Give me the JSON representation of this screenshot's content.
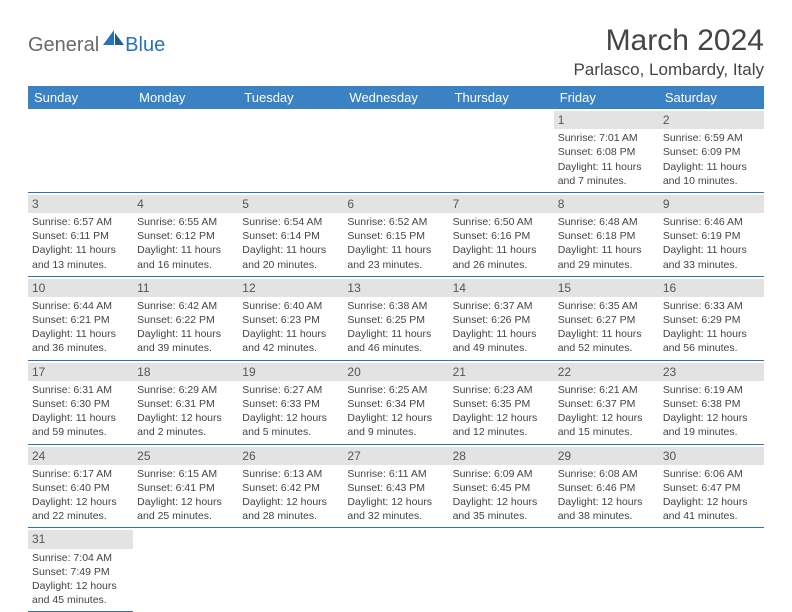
{
  "logo": {
    "general": "General",
    "blue": "Blue"
  },
  "title": "March 2024",
  "location": "Parlasco, Lombardy, Italy",
  "colors": {
    "header_bg": "#3b82c4",
    "header_fg": "#ffffff",
    "daynum_bg": "#e3e3e3",
    "rule": "#2a71b8",
    "logo_gray": "#6a6a6a",
    "logo_blue": "#2a71b8"
  },
  "weekdays": [
    "Sunday",
    "Monday",
    "Tuesday",
    "Wednesday",
    "Thursday",
    "Friday",
    "Saturday"
  ],
  "cells": [
    {
      "day": "",
      "sunrise": "",
      "sunset": "",
      "daylight": ""
    },
    {
      "day": "",
      "sunrise": "",
      "sunset": "",
      "daylight": ""
    },
    {
      "day": "",
      "sunrise": "",
      "sunset": "",
      "daylight": ""
    },
    {
      "day": "",
      "sunrise": "",
      "sunset": "",
      "daylight": ""
    },
    {
      "day": "",
      "sunrise": "",
      "sunset": "",
      "daylight": ""
    },
    {
      "day": "1",
      "sunrise": "Sunrise: 7:01 AM",
      "sunset": "Sunset: 6:08 PM",
      "daylight": "Daylight: 11 hours and 7 minutes."
    },
    {
      "day": "2",
      "sunrise": "Sunrise: 6:59 AM",
      "sunset": "Sunset: 6:09 PM",
      "daylight": "Daylight: 11 hours and 10 minutes."
    },
    {
      "day": "3",
      "sunrise": "Sunrise: 6:57 AM",
      "sunset": "Sunset: 6:11 PM",
      "daylight": "Daylight: 11 hours and 13 minutes."
    },
    {
      "day": "4",
      "sunrise": "Sunrise: 6:55 AM",
      "sunset": "Sunset: 6:12 PM",
      "daylight": "Daylight: 11 hours and 16 minutes."
    },
    {
      "day": "5",
      "sunrise": "Sunrise: 6:54 AM",
      "sunset": "Sunset: 6:14 PM",
      "daylight": "Daylight: 11 hours and 20 minutes."
    },
    {
      "day": "6",
      "sunrise": "Sunrise: 6:52 AM",
      "sunset": "Sunset: 6:15 PM",
      "daylight": "Daylight: 11 hours and 23 minutes."
    },
    {
      "day": "7",
      "sunrise": "Sunrise: 6:50 AM",
      "sunset": "Sunset: 6:16 PM",
      "daylight": "Daylight: 11 hours and 26 minutes."
    },
    {
      "day": "8",
      "sunrise": "Sunrise: 6:48 AM",
      "sunset": "Sunset: 6:18 PM",
      "daylight": "Daylight: 11 hours and 29 minutes."
    },
    {
      "day": "9",
      "sunrise": "Sunrise: 6:46 AM",
      "sunset": "Sunset: 6:19 PM",
      "daylight": "Daylight: 11 hours and 33 minutes."
    },
    {
      "day": "10",
      "sunrise": "Sunrise: 6:44 AM",
      "sunset": "Sunset: 6:21 PM",
      "daylight": "Daylight: 11 hours and 36 minutes."
    },
    {
      "day": "11",
      "sunrise": "Sunrise: 6:42 AM",
      "sunset": "Sunset: 6:22 PM",
      "daylight": "Daylight: 11 hours and 39 minutes."
    },
    {
      "day": "12",
      "sunrise": "Sunrise: 6:40 AM",
      "sunset": "Sunset: 6:23 PM",
      "daylight": "Daylight: 11 hours and 42 minutes."
    },
    {
      "day": "13",
      "sunrise": "Sunrise: 6:38 AM",
      "sunset": "Sunset: 6:25 PM",
      "daylight": "Daylight: 11 hours and 46 minutes."
    },
    {
      "day": "14",
      "sunrise": "Sunrise: 6:37 AM",
      "sunset": "Sunset: 6:26 PM",
      "daylight": "Daylight: 11 hours and 49 minutes."
    },
    {
      "day": "15",
      "sunrise": "Sunrise: 6:35 AM",
      "sunset": "Sunset: 6:27 PM",
      "daylight": "Daylight: 11 hours and 52 minutes."
    },
    {
      "day": "16",
      "sunrise": "Sunrise: 6:33 AM",
      "sunset": "Sunset: 6:29 PM",
      "daylight": "Daylight: 11 hours and 56 minutes."
    },
    {
      "day": "17",
      "sunrise": "Sunrise: 6:31 AM",
      "sunset": "Sunset: 6:30 PM",
      "daylight": "Daylight: 11 hours and 59 minutes."
    },
    {
      "day": "18",
      "sunrise": "Sunrise: 6:29 AM",
      "sunset": "Sunset: 6:31 PM",
      "daylight": "Daylight: 12 hours and 2 minutes."
    },
    {
      "day": "19",
      "sunrise": "Sunrise: 6:27 AM",
      "sunset": "Sunset: 6:33 PM",
      "daylight": "Daylight: 12 hours and 5 minutes."
    },
    {
      "day": "20",
      "sunrise": "Sunrise: 6:25 AM",
      "sunset": "Sunset: 6:34 PM",
      "daylight": "Daylight: 12 hours and 9 minutes."
    },
    {
      "day": "21",
      "sunrise": "Sunrise: 6:23 AM",
      "sunset": "Sunset: 6:35 PM",
      "daylight": "Daylight: 12 hours and 12 minutes."
    },
    {
      "day": "22",
      "sunrise": "Sunrise: 6:21 AM",
      "sunset": "Sunset: 6:37 PM",
      "daylight": "Daylight: 12 hours and 15 minutes."
    },
    {
      "day": "23",
      "sunrise": "Sunrise: 6:19 AM",
      "sunset": "Sunset: 6:38 PM",
      "daylight": "Daylight: 12 hours and 19 minutes."
    },
    {
      "day": "24",
      "sunrise": "Sunrise: 6:17 AM",
      "sunset": "Sunset: 6:40 PM",
      "daylight": "Daylight: 12 hours and 22 minutes."
    },
    {
      "day": "25",
      "sunrise": "Sunrise: 6:15 AM",
      "sunset": "Sunset: 6:41 PM",
      "daylight": "Daylight: 12 hours and 25 minutes."
    },
    {
      "day": "26",
      "sunrise": "Sunrise: 6:13 AM",
      "sunset": "Sunset: 6:42 PM",
      "daylight": "Daylight: 12 hours and 28 minutes."
    },
    {
      "day": "27",
      "sunrise": "Sunrise: 6:11 AM",
      "sunset": "Sunset: 6:43 PM",
      "daylight": "Daylight: 12 hours and 32 minutes."
    },
    {
      "day": "28",
      "sunrise": "Sunrise: 6:09 AM",
      "sunset": "Sunset: 6:45 PM",
      "daylight": "Daylight: 12 hours and 35 minutes."
    },
    {
      "day": "29",
      "sunrise": "Sunrise: 6:08 AM",
      "sunset": "Sunset: 6:46 PM",
      "daylight": "Daylight: 12 hours and 38 minutes."
    },
    {
      "day": "30",
      "sunrise": "Sunrise: 6:06 AM",
      "sunset": "Sunset: 6:47 PM",
      "daylight": "Daylight: 12 hours and 41 minutes."
    },
    {
      "day": "31",
      "sunrise": "Sunrise: 7:04 AM",
      "sunset": "Sunset: 7:49 PM",
      "daylight": "Daylight: 12 hours and 45 minutes."
    },
    {
      "day": "",
      "sunrise": "",
      "sunset": "",
      "daylight": ""
    },
    {
      "day": "",
      "sunrise": "",
      "sunset": "",
      "daylight": ""
    },
    {
      "day": "",
      "sunrise": "",
      "sunset": "",
      "daylight": ""
    },
    {
      "day": "",
      "sunrise": "",
      "sunset": "",
      "daylight": ""
    },
    {
      "day": "",
      "sunrise": "",
      "sunset": "",
      "daylight": ""
    },
    {
      "day": "",
      "sunrise": "",
      "sunset": "",
      "daylight": ""
    }
  ]
}
